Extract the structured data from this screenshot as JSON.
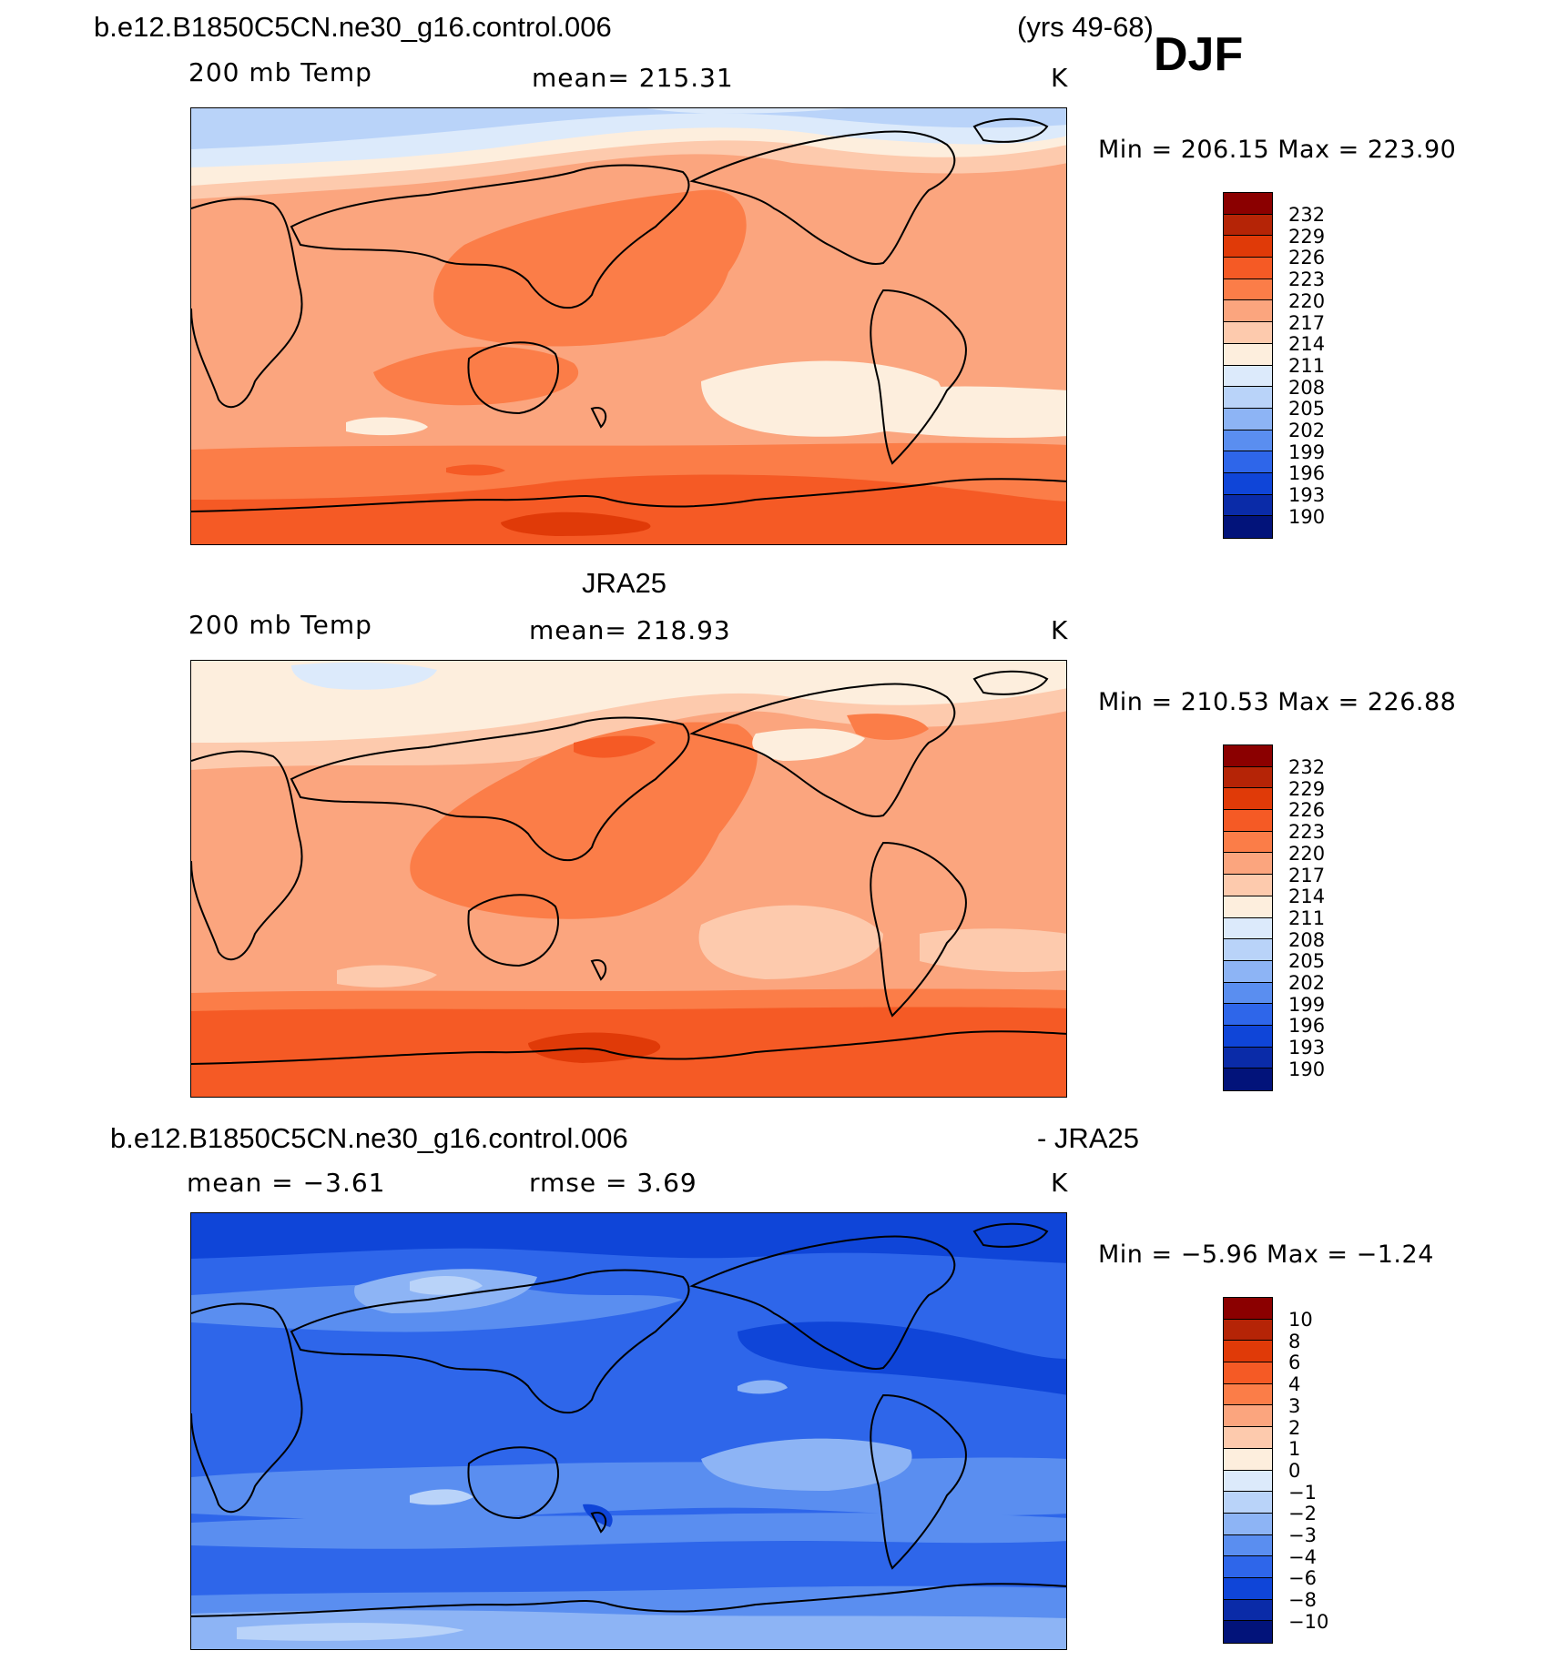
{
  "header": {
    "case_name": "b.e12.B1850C5CN.ne30_g16.control.006",
    "years": "(yrs 49-68)",
    "season": "DJF"
  },
  "panels": [
    {
      "id": "model",
      "title": "",
      "variable": "200 mb Temp",
      "stat": "mean=  215.31",
      "units": "K",
      "minmax": "Min  =  206.15  Max  =  223.90"
    },
    {
      "id": "obs",
      "title": "JRA25",
      "variable": "200 mb Temp",
      "stat": "mean=  218.93",
      "units": "K",
      "minmax": "Min  =  210.53  Max  =  226.88"
    },
    {
      "id": "diff",
      "title_left": "b.e12.B1850C5CN.ne30_g16.control.006",
      "title_right": "- JRA25",
      "stat_mean": "mean  =    −3.61",
      "stat_rmse": "rmse  =     3.69",
      "units": "K",
      "minmax": "Min  =    −5.96  Max  =    −1.24"
    }
  ],
  "colorbars": {
    "temp_labels": [
      "232",
      "229",
      "226",
      "223",
      "220",
      "217",
      "214",
      "211",
      "208",
      "205",
      "202",
      "199",
      "196",
      "193",
      "190"
    ],
    "diff_labels": [
      "10",
      "8",
      "6",
      "4",
      "3",
      "2",
      "1",
      "0",
      "−1",
      "−2",
      "−3",
      "−4",
      "−6",
      "−8",
      "−10"
    ],
    "colors": [
      "#8b0000",
      "#b52406",
      "#e03a08",
      "#f55a25",
      "#fb7d48",
      "#fba57e",
      "#fdcaad",
      "#fdeedd",
      "#dceafb",
      "#b9d3f9",
      "#8db4f5",
      "#5a8ef0",
      "#2e66ea",
      "#0f45d8",
      "#0a2ba8",
      "#02137a"
    ]
  },
  "legend_colors": {
    "land_outline": "#000000"
  }
}
